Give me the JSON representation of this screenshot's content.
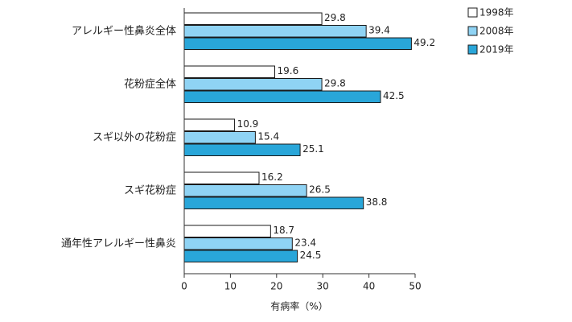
{
  "chart_data": {
    "type": "bar",
    "orientation": "horizontal",
    "categories": [
      "アレルギー性鼻炎全体",
      "花粉症全体",
      "スギ以外の花粉症",
      "スギ花粉症",
      "通年性アレルギー性鼻炎"
    ],
    "series": [
      {
        "name": "1998年",
        "color": "#ffffff",
        "values": [
          29.8,
          19.6,
          10.9,
          16.2,
          18.7
        ]
      },
      {
        "name": "2008年",
        "color": "#8fd3f4",
        "values": [
          39.4,
          29.8,
          15.4,
          26.5,
          23.4
        ]
      },
      {
        "name": "2019年",
        "color": "#29a6d9",
        "values": [
          49.2,
          42.5,
          25.1,
          38.8,
          24.5
        ]
      }
    ],
    "xlim": [
      0,
      50
    ],
    "xticks": [
      0,
      10,
      20,
      30,
      40,
      50
    ],
    "x_label": "有病率（%）",
    "legend": "top-right"
  }
}
